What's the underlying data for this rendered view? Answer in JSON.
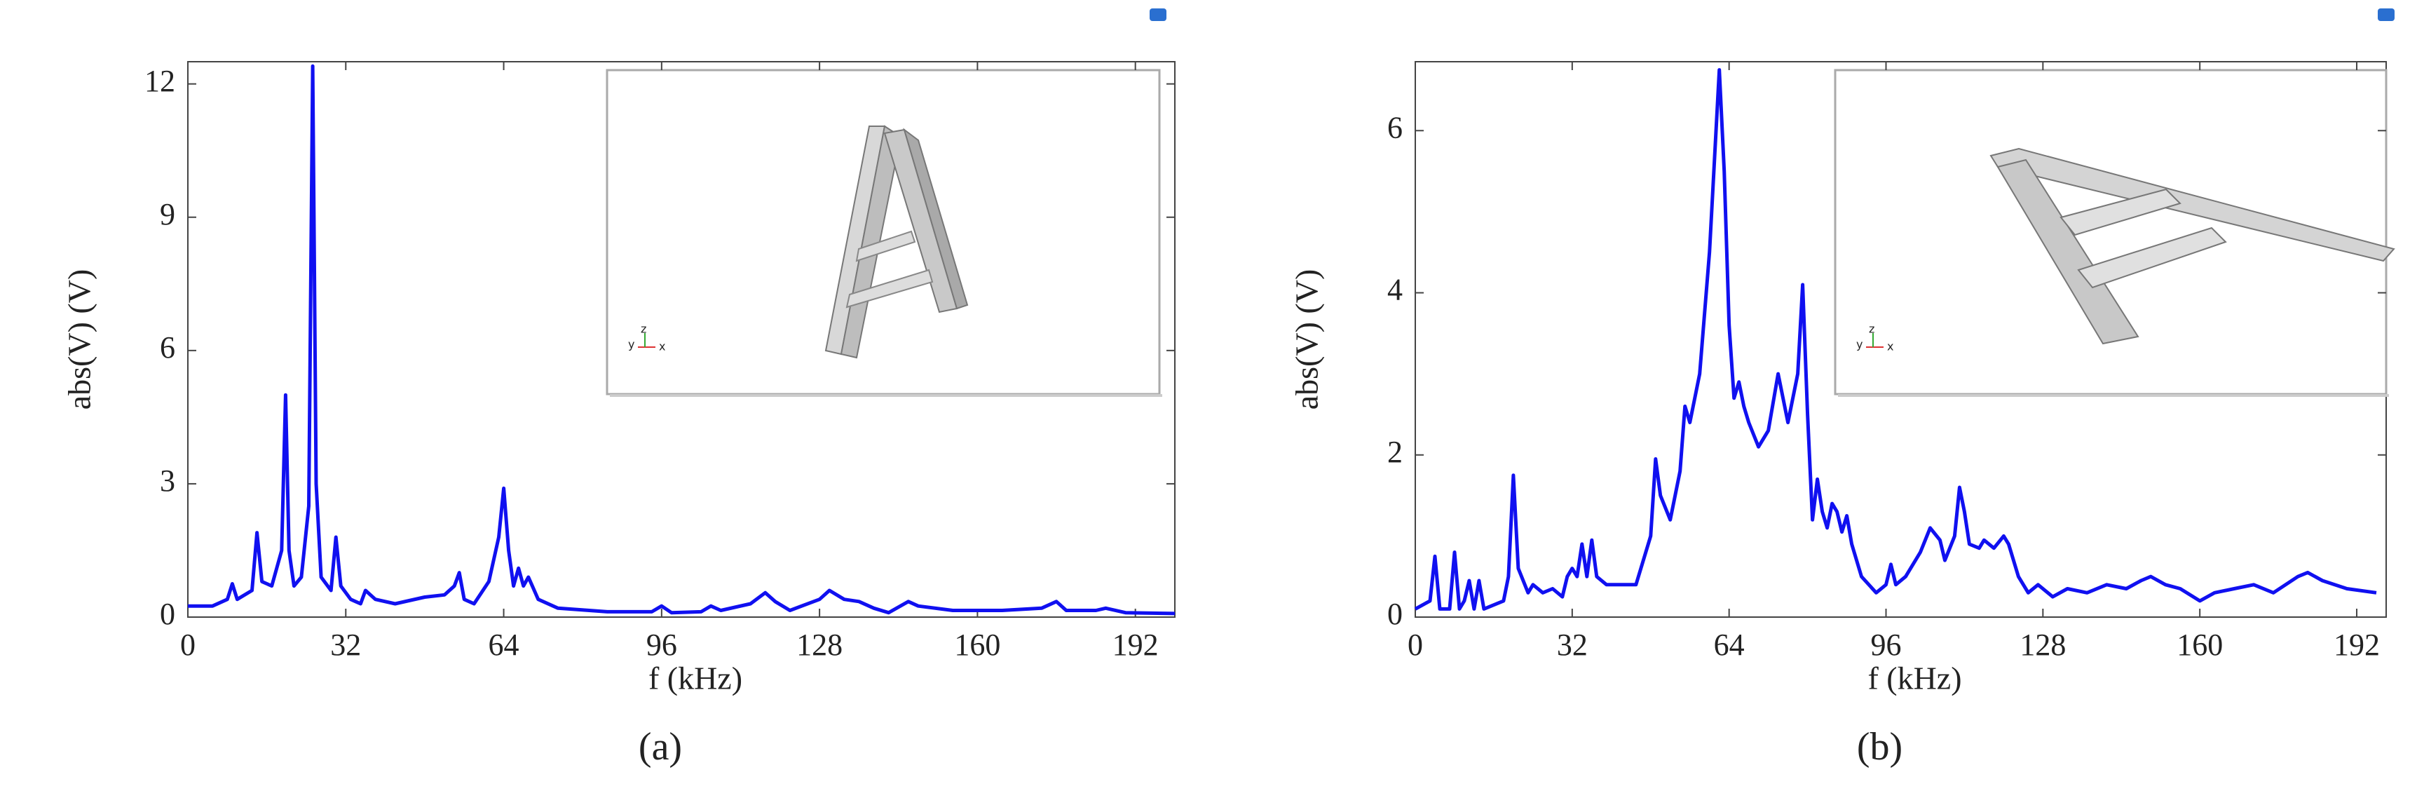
{
  "chart_data": [
    {
      "type": "line",
      "caption": "(a)",
      "x_label": "f (kHz)",
      "y_label": "abs(V) (V)",
      "color": "#1010f0",
      "inset_axis_labels": [
        "y",
        "z",
        "x"
      ],
      "xlim": [
        0,
        200
      ],
      "xticks": [
        0,
        32,
        64,
        96,
        128,
        160,
        192
      ],
      "ylim": [
        0,
        12.5
      ],
      "yticks": [
        0,
        3,
        6,
        9,
        12
      ],
      "x": [
        0,
        5,
        8,
        9,
        10,
        13,
        14,
        15,
        17,
        19,
        19.8,
        20.5,
        21.5,
        23,
        24.5,
        25.3,
        26,
        27,
        29,
        30,
        31,
        33,
        35,
        36,
        38,
        42,
        48,
        52,
        54,
        55,
        56,
        58,
        61,
        63,
        64,
        65,
        66,
        67,
        68,
        69,
        71,
        75,
        85,
        94,
        96,
        98,
        104,
        106,
        108,
        114,
        117,
        119,
        122,
        128,
        130,
        133,
        136,
        139,
        142,
        146,
        148,
        155,
        165,
        173,
        176,
        178,
        184,
        186,
        190,
        200
      ],
      "values": [
        0.25,
        0.25,
        0.4,
        0.75,
        0.4,
        0.6,
        1.9,
        0.8,
        0.7,
        1.5,
        5.0,
        1.5,
        0.7,
        0.9,
        2.5,
        12.4,
        3,
        0.9,
        0.6,
        1.8,
        0.7,
        0.4,
        0.3,
        0.6,
        0.4,
        0.3,
        0.45,
        0.5,
        0.7,
        1.0,
        0.4,
        0.3,
        0.8,
        1.8,
        2.9,
        1.5,
        0.7,
        1.1,
        0.7,
        0.9,
        0.4,
        0.2,
        0.12,
        0.12,
        0.25,
        0.1,
        0.12,
        0.25,
        0.15,
        0.3,
        0.55,
        0.35,
        0.15,
        0.4,
        0.6,
        0.4,
        0.35,
        0.2,
        0.1,
        0.35,
        0.25,
        0.15,
        0.15,
        0.2,
        0.35,
        0.15,
        0.15,
        0.2,
        0.1,
        0.08
      ]
    },
    {
      "type": "line",
      "caption": "(b)",
      "x_label": "f (kHz)",
      "y_label": "abs(V) (V)",
      "color": "#1010f0",
      "inset_axis_labels": [
        "y",
        "z",
        "x"
      ],
      "xlim": [
        0,
        198
      ],
      "xticks": [
        0,
        32,
        64,
        96,
        128,
        160,
        192
      ],
      "ylim": [
        0,
        6.85
      ],
      "yticks": [
        0,
        2,
        4,
        6
      ],
      "x": [
        0,
        3,
        4,
        5,
        7,
        8,
        9,
        10,
        11,
        12,
        13,
        14,
        18,
        19,
        20,
        21,
        23,
        24,
        26,
        28,
        30,
        31,
        32,
        33,
        34,
        35,
        36,
        37,
        39,
        45,
        48,
        49,
        50,
        52,
        54,
        55,
        56,
        58,
        60,
        62,
        63,
        64,
        65,
        66,
        67,
        68,
        70,
        72,
        74,
        75,
        76,
        78,
        79,
        80,
        81,
        82,
        83,
        84,
        85,
        86,
        87,
        88,
        89,
        91,
        94,
        96,
        97,
        98,
        100,
        103,
        105,
        107,
        108,
        110,
        111,
        112,
        113,
        115,
        116,
        118,
        120,
        121,
        123,
        125,
        127,
        130,
        133,
        137,
        141,
        145,
        148,
        150,
        153,
        156,
        160,
        163,
        167,
        171,
        175,
        180,
        182,
        185,
        190,
        196
      ],
      "values": [
        0.1,
        0.2,
        0.75,
        0.1,
        0.1,
        0.8,
        0.1,
        0.2,
        0.45,
        0.1,
        0.45,
        0.1,
        0.2,
        0.5,
        1.75,
        0.6,
        0.3,
        0.4,
        0.3,
        0.35,
        0.25,
        0.5,
        0.6,
        0.5,
        0.9,
        0.5,
        0.95,
        0.5,
        0.4,
        0.4,
        1.0,
        1.95,
        1.5,
        1.2,
        1.8,
        2.6,
        2.4,
        3.0,
        4.5,
        6.75,
        5.5,
        3.6,
        2.7,
        2.9,
        2.6,
        2.4,
        2.1,
        2.3,
        3.0,
        2.7,
        2.4,
        3.0,
        4.1,
        2.5,
        1.2,
        1.7,
        1.3,
        1.1,
        1.4,
        1.3,
        1.05,
        1.25,
        0.9,
        0.5,
        0.3,
        0.4,
        0.65,
        0.4,
        0.5,
        0.8,
        1.1,
        0.95,
        0.7,
        1.0,
        1.6,
        1.3,
        0.9,
        0.85,
        0.95,
        0.85,
        1.0,
        0.9,
        0.5,
        0.3,
        0.4,
        0.25,
        0.35,
        0.3,
        0.4,
        0.35,
        0.45,
        0.5,
        0.4,
        0.35,
        0.2,
        0.3,
        0.35,
        0.4,
        0.3,
        0.5,
        0.55,
        0.45,
        0.35,
        0.3
      ]
    }
  ]
}
